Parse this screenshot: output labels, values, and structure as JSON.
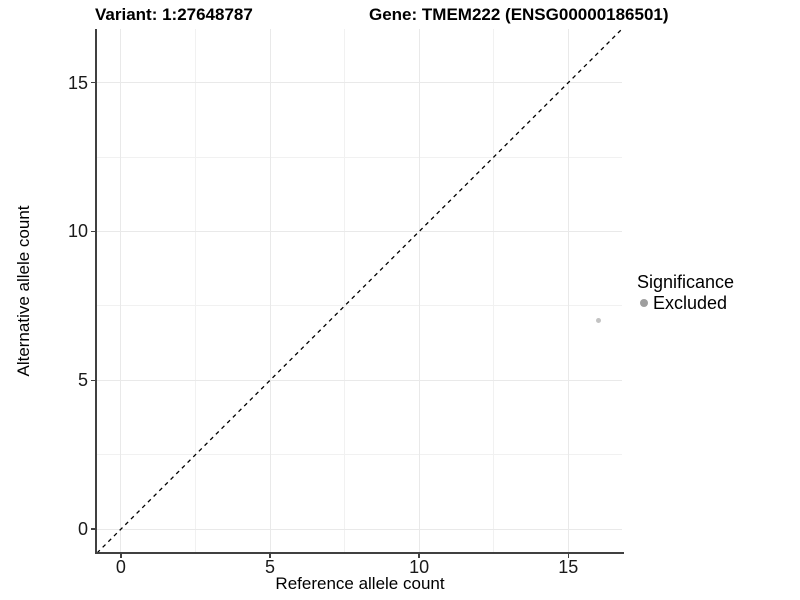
{
  "title": {
    "variant_label": "Variant: 1:27648787",
    "gene_label": "Gene: TMEM222 (ENSG00000186501)"
  },
  "chart_data": {
    "type": "scatter",
    "title": "Variant: 1:27648787   Gene: TMEM222 (ENSG00000186501)",
    "xlabel": "Reference allele count",
    "ylabel": "Alternative allele count",
    "xlim": [
      -0.8,
      16.8
    ],
    "ylim": [
      -0.8,
      16.8
    ],
    "x_major_ticks": [
      0,
      5,
      10,
      15
    ],
    "y_major_ticks": [
      0,
      5,
      10,
      15
    ],
    "x_minor_gridlines": [
      2.5,
      7.5,
      12.5
    ],
    "y_minor_gridlines": [
      2.5,
      7.5,
      12.5
    ],
    "grid": "on",
    "reference_line": {
      "type": "identity",
      "style": "dashed",
      "color": "#000000"
    },
    "series": [
      {
        "name": "Excluded",
        "points": [
          {
            "x": 16,
            "y": 7
          }
        ],
        "point_color": "#c3c3c3"
      }
    ],
    "legend": {
      "title": "Significance",
      "position": "right",
      "entries": [
        {
          "label": "Excluded",
          "color": "#9e9e9e"
        }
      ]
    },
    "colors": {
      "background": "#ffffff",
      "grid_major": "#e9e9e9",
      "grid_minor": "#f1f1f1",
      "axis_line": "#404040",
      "tick_label": "#1a1a1a"
    }
  }
}
